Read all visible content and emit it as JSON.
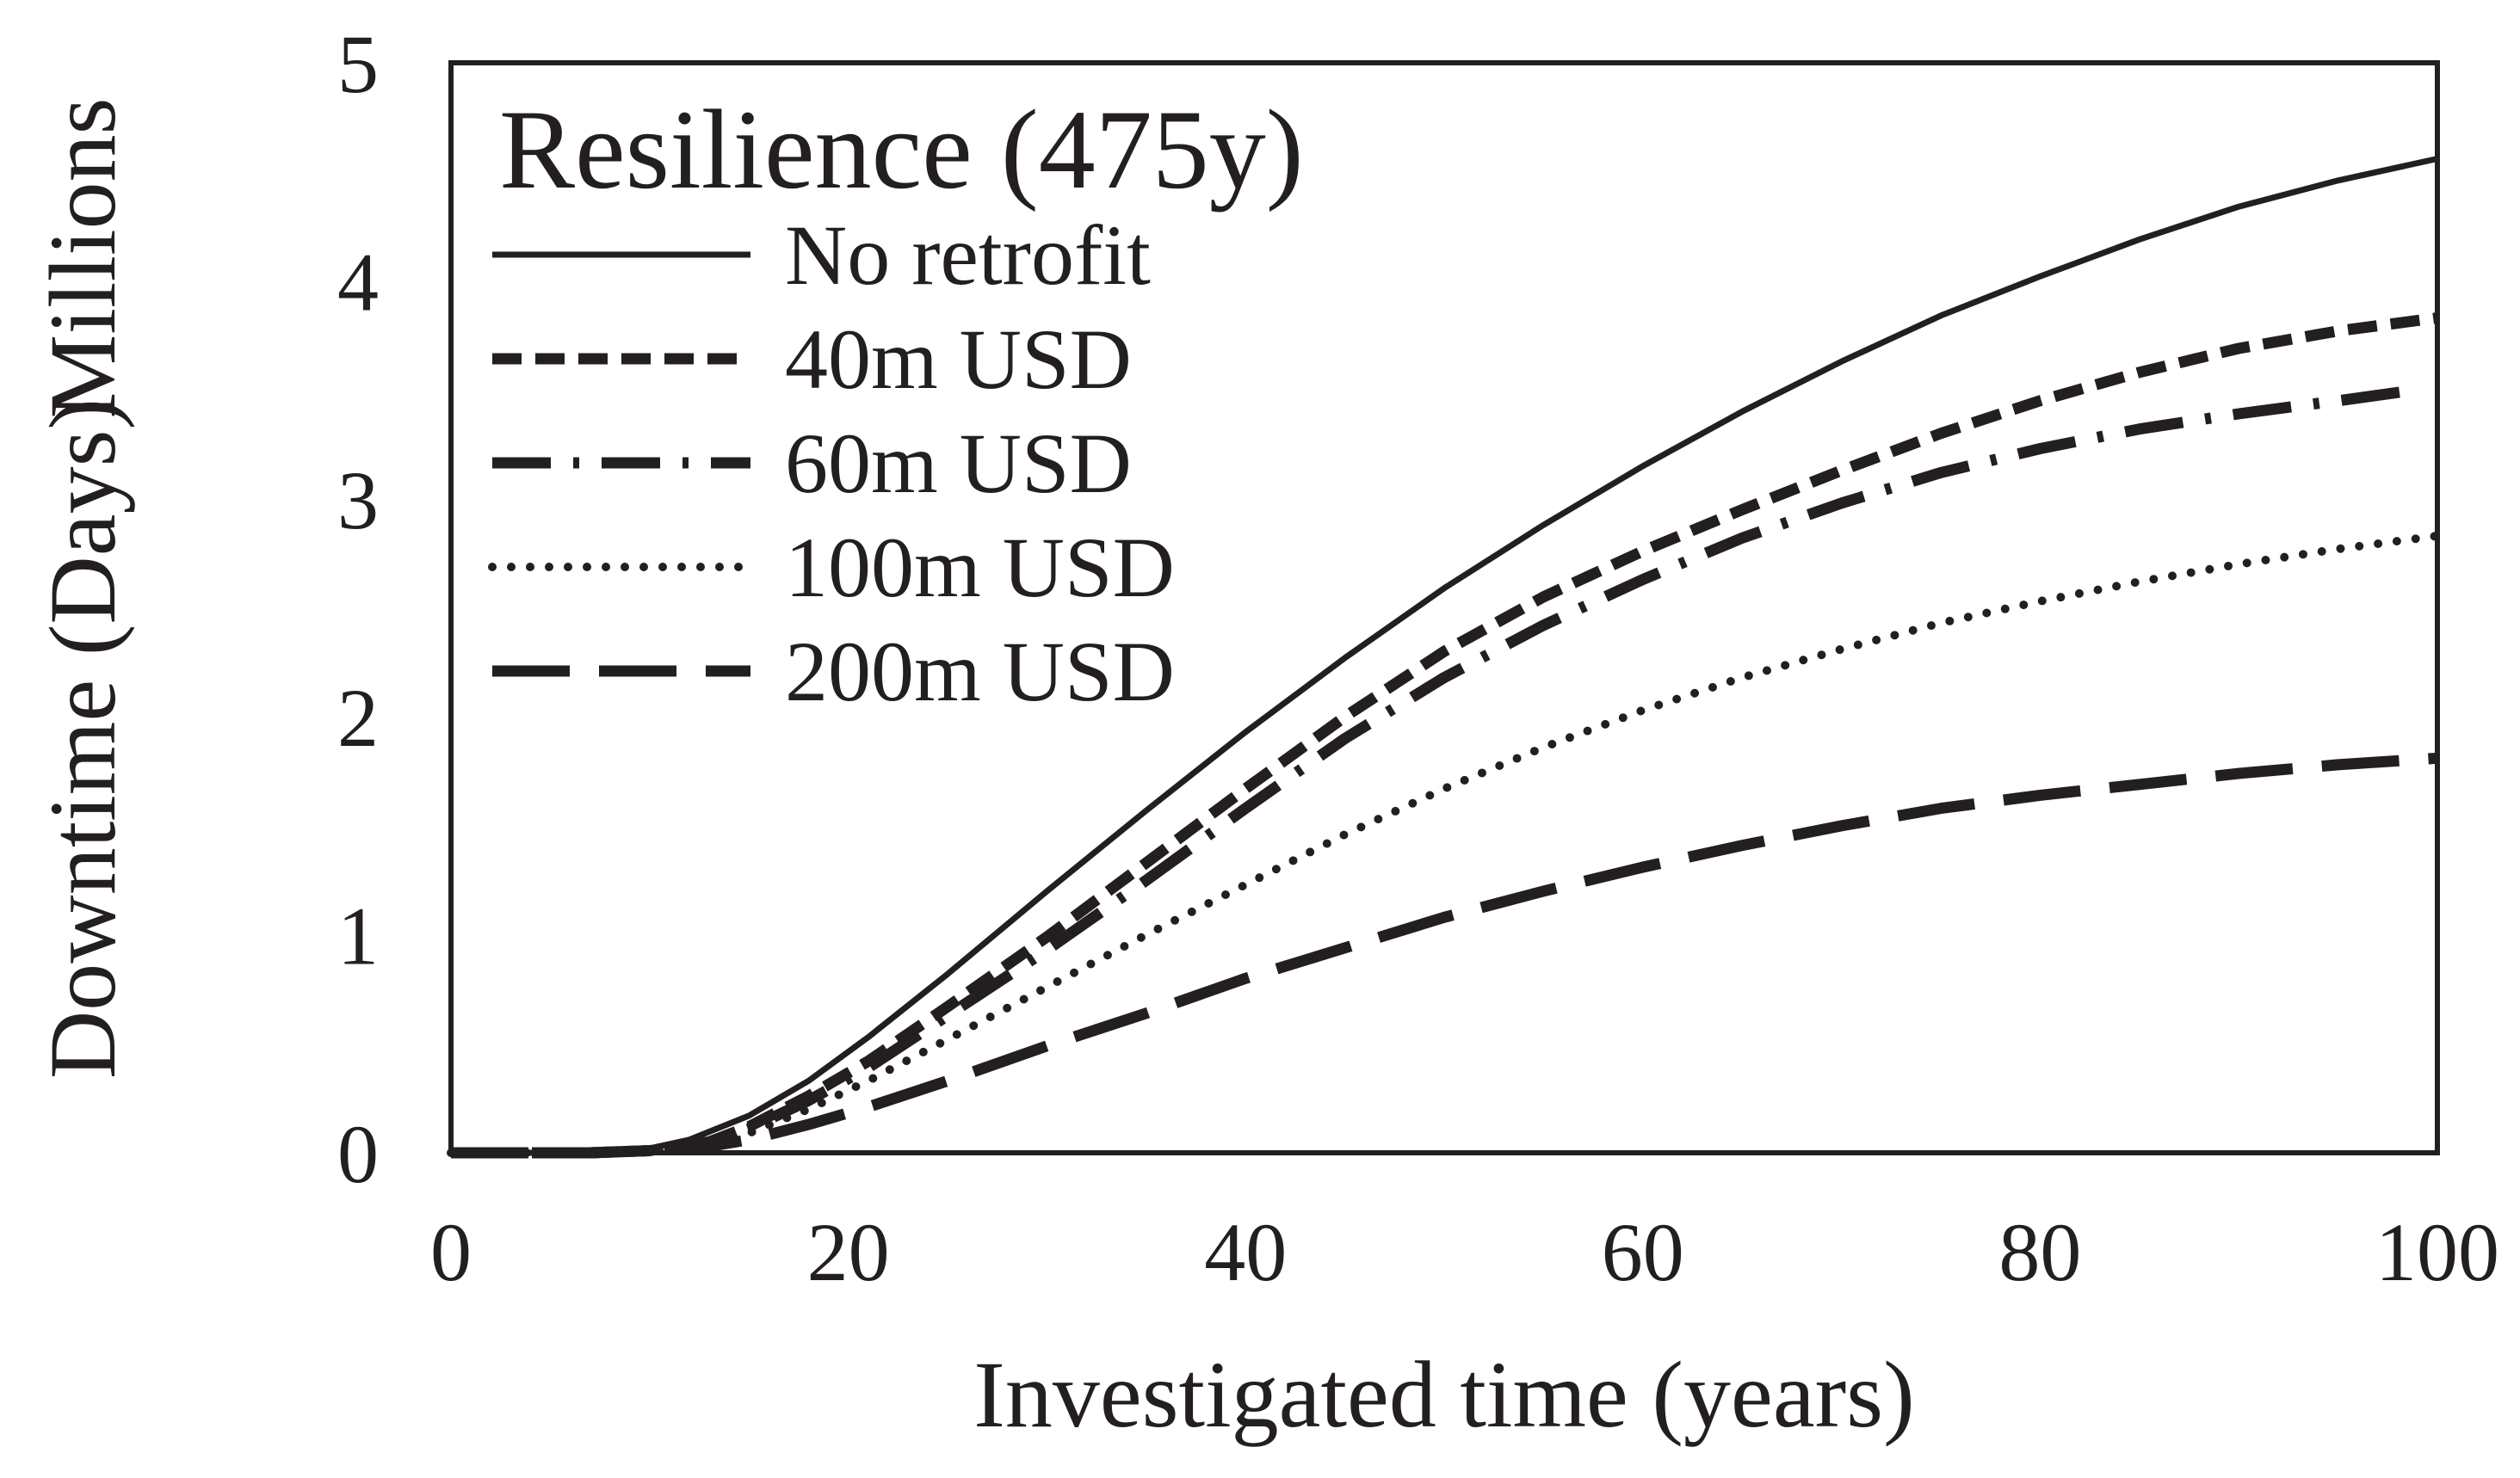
{
  "colors": {
    "ink": "#231f20",
    "background": "#ffffff"
  },
  "chart_data": {
    "type": "line",
    "xlabel": "Investigated time (years)",
    "ylabel": "Downtime (Days)",
    "yunit": "Millions",
    "xlim": [
      0,
      100
    ],
    "ylim": [
      0,
      5
    ],
    "xticks": [
      "0",
      "20",
      "40",
      "60",
      "80",
      "100"
    ],
    "yticks": [
      "0",
      "1",
      "2",
      "3",
      "4",
      "5"
    ],
    "grid": false,
    "legend": {
      "title": "Resilience (475y)",
      "placement": "top-left"
    },
    "series": [
      {
        "name": "No retrofit",
        "dash": "solid",
        "points": [
          [
            0,
            0
          ],
          [
            7,
            0
          ],
          [
            10,
            0.02
          ],
          [
            12,
            0.06
          ],
          [
            15,
            0.17
          ],
          [
            18,
            0.33
          ],
          [
            21,
            0.53
          ],
          [
            25,
            0.82
          ],
          [
            30,
            1.2
          ],
          [
            35,
            1.57
          ],
          [
            40,
            1.93
          ],
          [
            45,
            2.27
          ],
          [
            50,
            2.59
          ],
          [
            55,
            2.88
          ],
          [
            60,
            3.15
          ],
          [
            65,
            3.4
          ],
          [
            70,
            3.63
          ],
          [
            75,
            3.84
          ],
          [
            80,
            4.02
          ],
          [
            85,
            4.19
          ],
          [
            90,
            4.34
          ],
          [
            95,
            4.46
          ],
          [
            100,
            4.56
          ]
        ]
      },
      {
        "name": "40m USD",
        "dash": "short-dash",
        "points": [
          [
            0,
            0
          ],
          [
            7,
            0
          ],
          [
            10,
            0.01
          ],
          [
            13,
            0.05
          ],
          [
            15,
            0.12
          ],
          [
            18,
            0.26
          ],
          [
            21,
            0.42
          ],
          [
            25,
            0.67
          ],
          [
            30,
            0.99
          ],
          [
            35,
            1.33
          ],
          [
            40,
            1.67
          ],
          [
            45,
            2.0
          ],
          [
            50,
            2.3
          ],
          [
            55,
            2.55
          ],
          [
            60,
            2.76
          ],
          [
            65,
            2.95
          ],
          [
            70,
            3.13
          ],
          [
            75,
            3.3
          ],
          [
            80,
            3.45
          ],
          [
            85,
            3.58
          ],
          [
            90,
            3.69
          ],
          [
            95,
            3.77
          ],
          [
            100,
            3.83
          ]
        ]
      },
      {
        "name": "60m USD",
        "dash": "dash-dot",
        "points": [
          [
            0,
            0
          ],
          [
            7,
            0
          ],
          [
            10,
            0.01
          ],
          [
            13,
            0.05
          ],
          [
            15,
            0.11
          ],
          [
            18,
            0.24
          ],
          [
            21,
            0.39
          ],
          [
            25,
            0.63
          ],
          [
            30,
            0.93
          ],
          [
            35,
            1.25
          ],
          [
            40,
            1.58
          ],
          [
            45,
            1.9
          ],
          [
            50,
            2.18
          ],
          [
            55,
            2.42
          ],
          [
            60,
            2.63
          ],
          [
            65,
            2.82
          ],
          [
            70,
            2.98
          ],
          [
            75,
            3.12
          ],
          [
            80,
            3.23
          ],
          [
            85,
            3.32
          ],
          [
            90,
            3.39
          ],
          [
            95,
            3.45
          ],
          [
            99,
            3.5
          ]
        ]
      },
      {
        "name": "100m USD",
        "dash": "dotted",
        "points": [
          [
            0,
            0
          ],
          [
            7,
            0
          ],
          [
            10,
            0.01
          ],
          [
            13,
            0.04
          ],
          [
            15,
            0.09
          ],
          [
            18,
            0.2
          ],
          [
            21,
            0.33
          ],
          [
            25,
            0.52
          ],
          [
            30,
            0.76
          ],
          [
            35,
            1.0
          ],
          [
            40,
            1.23
          ],
          [
            45,
            1.46
          ],
          [
            50,
            1.67
          ],
          [
            55,
            1.86
          ],
          [
            60,
            2.03
          ],
          [
            65,
            2.18
          ],
          [
            70,
            2.31
          ],
          [
            75,
            2.43
          ],
          [
            80,
            2.53
          ],
          [
            85,
            2.62
          ],
          [
            90,
            2.7
          ],
          [
            95,
            2.77
          ],
          [
            100,
            2.83
          ]
        ]
      },
      {
        "name": "200m USD",
        "dash": "long-dash",
        "points": [
          [
            0,
            0
          ],
          [
            7,
            0
          ],
          [
            10,
            0.01
          ],
          [
            13,
            0.03
          ],
          [
            15,
            0.06
          ],
          [
            18,
            0.13
          ],
          [
            21,
            0.21
          ],
          [
            25,
            0.33
          ],
          [
            30,
            0.49
          ],
          [
            35,
            0.64
          ],
          [
            40,
            0.8
          ],
          [
            45,
            0.94
          ],
          [
            50,
            1.08
          ],
          [
            55,
            1.2
          ],
          [
            60,
            1.31
          ],
          [
            65,
            1.41
          ],
          [
            70,
            1.5
          ],
          [
            75,
            1.58
          ],
          [
            80,
            1.64
          ],
          [
            85,
            1.69
          ],
          [
            90,
            1.74
          ],
          [
            95,
            1.78
          ],
          [
            100,
            1.81
          ]
        ]
      }
    ]
  }
}
